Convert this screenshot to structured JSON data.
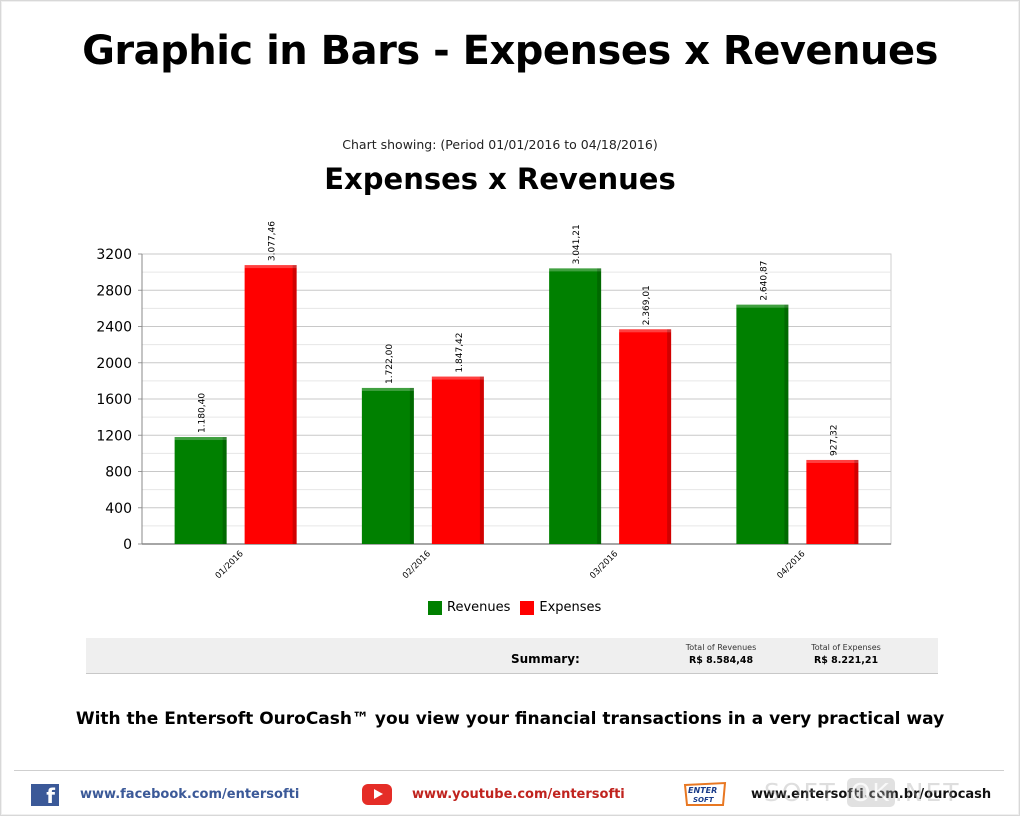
{
  "page": {
    "main_title": "Graphic in Bars - Expenses x Revenues",
    "caption": "With the Entersoft OuroCash™ you view your financial transactions in a very practical way"
  },
  "chart_data": {
    "type": "bar",
    "subtitle": "Chart showing: (Period 01/01/2016 to 04/18/2016)",
    "title": "Expenses x Revenues",
    "categories": [
      "01/2016",
      "02/2016",
      "03/2016",
      "04/2016"
    ],
    "series": [
      {
        "name": "Revenues",
        "color": "#008000",
        "values": [
          1180.4,
          1722.0,
          3041.21,
          2640.87
        ],
        "labels": [
          "1.180,40",
          "1.722,00",
          "3.041,21",
          "2.640,87"
        ]
      },
      {
        "name": "Expenses",
        "color": "#ff0000",
        "values": [
          3077.46,
          1847.42,
          2369.01,
          927.32
        ],
        "labels": [
          "3.077,46",
          "1.847,42",
          "2.369,01",
          "927,32"
        ]
      }
    ],
    "y_ticks": [
      0,
      400,
      800,
      1200,
      1600,
      2000,
      2400,
      2800,
      3200
    ],
    "ylim": [
      0,
      3200
    ],
    "grid": true,
    "legend_position": "bottom-center"
  },
  "summary": {
    "label": "Summary:",
    "revenues_header": "Total of Revenues",
    "revenues_value": "R$ 8.584,48",
    "expenses_header": "Total of Expenses",
    "expenses_value": "R$ 8.221,21"
  },
  "footer": {
    "facebook": "www.facebook.com/entersofti",
    "youtube": "www.youtube.com/entersofti",
    "website": "www.entersofti.com.br/ourocash",
    "logo_text": "ENTER SOFT",
    "watermark_left": "SOFT",
    "watermark_ok": "OK",
    "watermark_right": ".NET",
    "facebook_glyph": "f"
  }
}
